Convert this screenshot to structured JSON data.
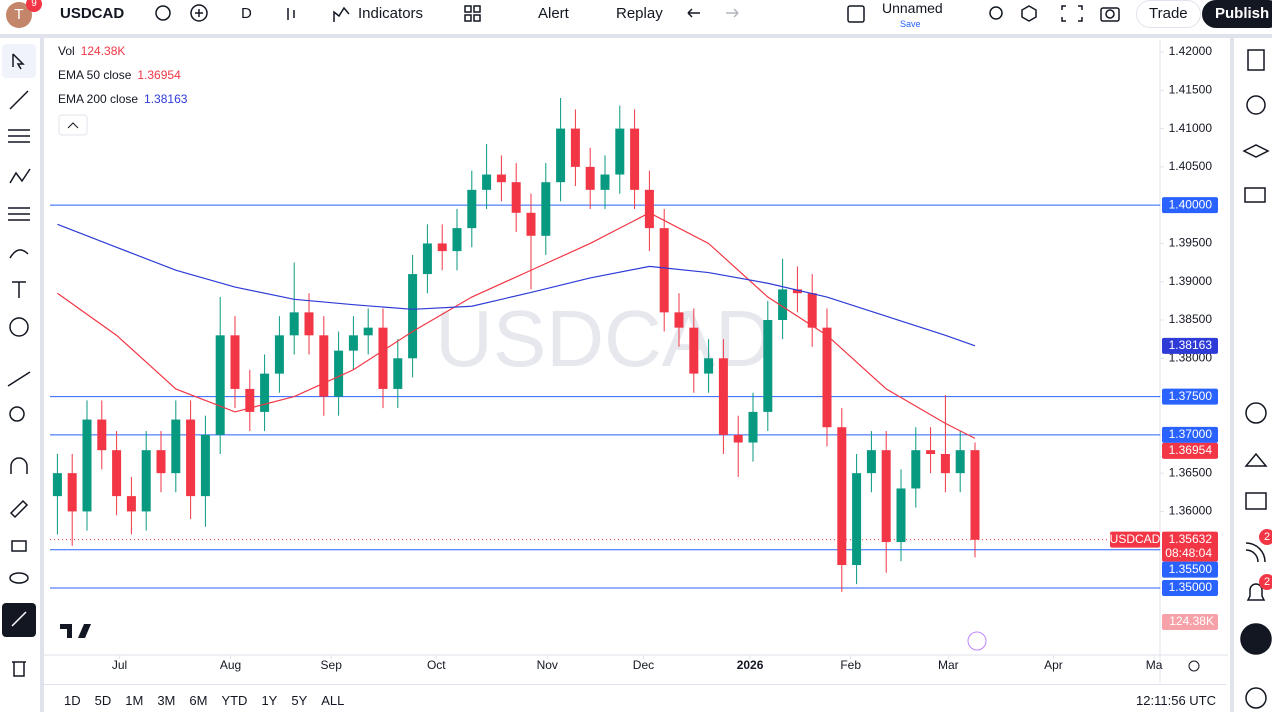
{
  "toolbar": {
    "avatar": "T",
    "badge": "9",
    "symbol": "USDCAD",
    "interval": "D",
    "indicators": "Indicators",
    "alert": "Alert",
    "replay": "Replay",
    "layout_name": "Unnamed",
    "save": "Save",
    "trade": "Trade",
    "publish": "Publish"
  },
  "sidebar": {
    "badges": [
      "2",
      "2"
    ]
  },
  "bottom": {
    "ranges": [
      "1D",
      "5D",
      "1M",
      "3M",
      "6M",
      "YTD",
      "1Y",
      "5Y",
      "ALL"
    ],
    "clock": "12:11:56 UTC"
  },
  "chart_data": {
    "type": "candlestick",
    "watermark": "USDCAD",
    "legend": {
      "volume_name": "Vol",
      "volume_value": "124.38K"
    },
    "xlim": [
      -0.5,
      74.5
    ],
    "xticks": [
      {
        "value": 4.2,
        "label": "Jul"
      },
      {
        "value": 11.7,
        "label": "Aug"
      },
      {
        "value": 18.5,
        "label": "Sep"
      },
      {
        "value": 25.6,
        "label": "Oct"
      },
      {
        "value": 33.1,
        "label": "Nov"
      },
      {
        "value": 39.6,
        "label": "Dec"
      },
      {
        "value": 46.8,
        "label": "2026"
      },
      {
        "value": 53.6,
        "label": "Feb"
      },
      {
        "value": 60.2,
        "label": "Mar"
      },
      {
        "value": 67.3,
        "label": "Apr"
      },
      {
        "value": 74.1,
        "label": "Ma"
      }
    ],
    "ylim": [
      1.34125,
      1.42157
    ],
    "yticks": [
      {
        "value": 1.35,
        "label": "1.35000"
      },
      {
        "value": 1.355,
        "label": "1.35500"
      },
      {
        "value": 1.36,
        "label": "1.36000"
      },
      {
        "value": 1.365,
        "label": "1.36500"
      },
      {
        "value": 1.37,
        "label": "1.37000"
      },
      {
        "value": 1.375,
        "label": "1.37500"
      },
      {
        "value": 1.38,
        "label": "1.38000"
      },
      {
        "value": 1.385,
        "label": "1.38500"
      },
      {
        "value": 1.39,
        "label": "1.39000"
      },
      {
        "value": 1.395,
        "label": "1.39500"
      },
      {
        "value": 1.4,
        "label": "1.40000"
      },
      {
        "value": 1.405,
        "label": "1.40500"
      },
      {
        "value": 1.41,
        "label": "1.41000"
      },
      {
        "value": 1.415,
        "label": "1.41500"
      },
      {
        "value": 1.42,
        "label": "1.42000"
      }
    ],
    "up_color": "#089981",
    "down_color": "#f23645",
    "open": [
      1.362,
      1.365,
      1.36,
      1.372,
      1.368,
      1.362,
      1.36,
      1.368,
      1.365,
      1.372,
      1.362,
      1.37,
      1.383,
      1.376,
      1.373,
      1.378,
      1.383,
      1.386,
      1.383,
      1.375,
      1.381,
      1.383,
      1.384,
      1.376,
      1.38,
      1.391,
      1.395,
      1.394,
      1.397,
      1.402,
      1.404,
      1.403,
      1.399,
      1.396,
      1.403,
      1.41,
      1.405,
      1.402,
      1.404,
      1.41,
      1.402,
      1.397,
      1.386,
      1.384,
      1.378,
      1.38,
      1.37,
      1.369,
      1.373,
      1.385,
      1.389,
      1.3885,
      1.384,
      1.371,
      1.353,
      1.365,
      1.368,
      1.356,
      1.363,
      1.368,
      1.3675,
      1.365,
      1.368
    ],
    "high": [
      1.3675,
      1.3675,
      1.3745,
      1.3745,
      1.3705,
      1.3645,
      1.3705,
      1.3705,
      1.3745,
      1.3745,
      1.3725,
      1.388,
      1.3855,
      1.3785,
      1.3805,
      1.3855,
      1.3925,
      1.3885,
      1.3855,
      1.3835,
      1.3855,
      1.3865,
      1.3865,
      1.3825,
      1.3935,
      1.3975,
      1.3975,
      1.3995,
      1.4045,
      1.408,
      1.4065,
      1.4055,
      1.4015,
      1.4055,
      1.414,
      1.4125,
      1.4075,
      1.4065,
      1.413,
      1.4125,
      1.4045,
      1.3995,
      1.3885,
      1.3865,
      1.3825,
      1.3825,
      1.3725,
      1.3755,
      1.3875,
      1.393,
      1.392,
      1.391,
      1.3865,
      1.3735,
      1.3675,
      1.3705,
      1.3705,
      1.3655,
      1.371,
      1.371,
      1.3752,
      1.3705,
      1.369
    ],
    "low": [
      1.357,
      1.3555,
      1.3575,
      1.3655,
      1.3595,
      1.357,
      1.3575,
      1.3625,
      1.3625,
      1.359,
      1.358,
      1.3675,
      1.3735,
      1.3705,
      1.3705,
      1.3755,
      1.3805,
      1.3805,
      1.3725,
      1.3725,
      1.3785,
      1.3805,
      1.3735,
      1.3735,
      1.3775,
      1.3885,
      1.3915,
      1.3915,
      1.3945,
      1.3995,
      1.4005,
      1.3965,
      1.389,
      1.3935,
      1.4005,
      1.4025,
      1.3995,
      1.3995,
      1.4015,
      1.3995,
      1.394,
      1.3835,
      1.3815,
      1.3755,
      1.3755,
      1.3675,
      1.3645,
      1.3665,
      1.3705,
      1.3825,
      1.386,
      1.3815,
      1.3685,
      1.3495,
      1.3505,
      1.3625,
      1.352,
      1.3535,
      1.3605,
      1.365,
      1.3625,
      1.3625,
      1.354
    ],
    "close": [
      1.365,
      1.36,
      1.372,
      1.368,
      1.362,
      1.36,
      1.368,
      1.365,
      1.372,
      1.362,
      1.37,
      1.383,
      1.376,
      1.373,
      1.378,
      1.383,
      1.386,
      1.383,
      1.375,
      1.381,
      1.383,
      1.384,
      1.376,
      1.38,
      1.391,
      1.395,
      1.394,
      1.397,
      1.402,
      1.404,
      1.403,
      1.399,
      1.396,
      1.403,
      1.41,
      1.405,
      1.402,
      1.404,
      1.41,
      1.402,
      1.397,
      1.386,
      1.384,
      1.378,
      1.38,
      1.37,
      1.369,
      1.373,
      1.385,
      1.389,
      1.3885,
      1.384,
      1.371,
      1.353,
      1.365,
      1.368,
      1.356,
      1.363,
      1.368,
      1.3675,
      1.365,
      1.368,
      1.3563
    ],
    "series": [
      {
        "name": "EMA 50 close",
        "color": "#f23645",
        "last": 1.36954,
        "x": [
          0,
          4,
          8,
          12,
          16,
          20,
          24,
          28,
          32,
          36,
          40,
          44,
          48,
          52,
          56,
          60,
          62
        ],
        "values": [
          1.3885,
          1.383,
          1.376,
          1.373,
          1.375,
          1.3785,
          1.3835,
          1.388,
          1.3915,
          1.395,
          1.399,
          1.395,
          1.388,
          1.383,
          1.376,
          1.3715,
          1.36954
        ]
      },
      {
        "name": "EMA 200 close",
        "color": "#2e3bd6",
        "last": 1.38163,
        "x": [
          0,
          4,
          8,
          12,
          16,
          20,
          24,
          28,
          32,
          36,
          40,
          44,
          48,
          52,
          56,
          60,
          62
        ],
        "values": [
          1.3975,
          1.3945,
          1.3915,
          1.3893,
          1.3877,
          1.387,
          1.3864,
          1.3868,
          1.3886,
          1.3905,
          1.392,
          1.3912,
          1.3898,
          1.388,
          1.3855,
          1.383,
          1.38163
        ]
      }
    ],
    "hlines": [
      {
        "value": 1.4,
        "label": "1.40000"
      },
      {
        "value": 1.375,
        "label": "1.37500"
      },
      {
        "value": 1.37,
        "label": "1.37000"
      },
      {
        "value": 1.355,
        "label": "1.35500"
      },
      {
        "value": 1.35,
        "label": "1.35000"
      }
    ],
    "hline_color": "#2962ff",
    "current": {
      "symbol": "USDCAD",
      "price": 1.35632,
      "countdown": "08:48:04"
    }
  }
}
